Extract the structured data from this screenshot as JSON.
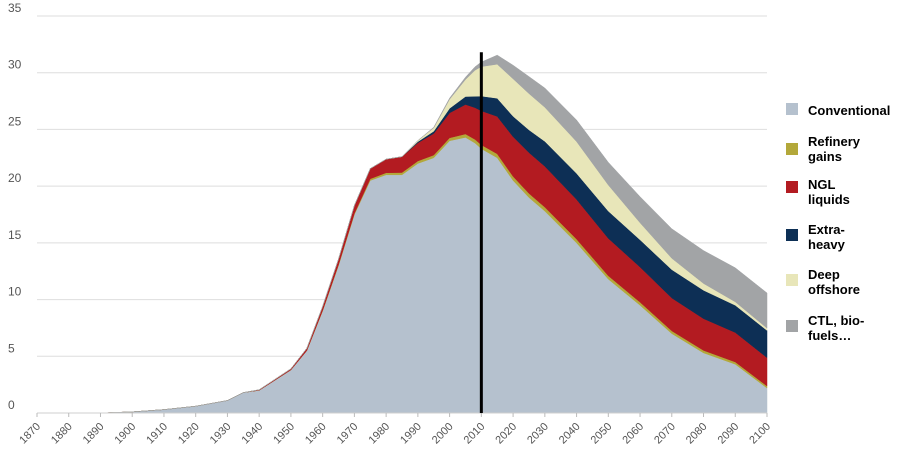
{
  "chart_data": {
    "type": "area",
    "stacked": true,
    "title": "",
    "xlabel": "",
    "ylabel": "",
    "xlim": [
      1870,
      2100
    ],
    "ylim": [
      0,
      35
    ],
    "yticks": [
      0,
      5,
      10,
      15,
      20,
      25,
      30,
      35
    ],
    "xticks": [
      "1870",
      "1880",
      "1890",
      "1900",
      "1910",
      "1920",
      "1930",
      "1940",
      "1950",
      "1960",
      "1970",
      "1980",
      "1990",
      "2000",
      "2010",
      "2020",
      "2030",
      "2040",
      "2050",
      "2060",
      "2070",
      "2080",
      "2090",
      "2100"
    ],
    "grid": "horizontal",
    "vertical_marker_x": 2010,
    "legend_position": "right",
    "x": [
      1870,
      1890,
      1900,
      1910,
      1920,
      1930,
      1935,
      1940,
      1950,
      1955,
      1960,
      1965,
      1970,
      1975,
      1980,
      1985,
      1990,
      1995,
      2000,
      2005,
      2008,
      2010,
      2015,
      2020,
      2025,
      2030,
      2040,
      2050,
      2060,
      2070,
      2080,
      2090,
      2100
    ],
    "series": [
      {
        "name": "Conventional",
        "color": "#b5c1ce",
        "values": [
          0,
          0,
          0.1,
          0.3,
          0.6,
          1.1,
          1.8,
          2.0,
          3.8,
          5.5,
          9,
          13,
          17.5,
          20.5,
          21,
          21,
          22,
          22.5,
          24,
          24.3,
          23.8,
          23.3,
          22.5,
          20.5,
          19,
          17.8,
          15,
          11.8,
          9.5,
          7,
          5.3,
          4.3,
          2.2
        ]
      },
      {
        "name": "Refinery gains",
        "color": "#b3a83a",
        "values": [
          0,
          0,
          0,
          0,
          0,
          0,
          0,
          0,
          0,
          0,
          0.05,
          0.08,
          0.1,
          0.15,
          0.18,
          0.2,
          0.22,
          0.24,
          0.26,
          0.3,
          0.32,
          0.34,
          0.35,
          0.36,
          0.36,
          0.35,
          0.33,
          0.3,
          0.27,
          0.24,
          0.22,
          0.2,
          0.18
        ]
      },
      {
        "name": "NGL liquids",
        "color": "#b31b21",
        "values": [
          0,
          0,
          0,
          0,
          0,
          0,
          0,
          0.05,
          0.1,
          0.2,
          0.35,
          0.5,
          0.7,
          0.9,
          1.2,
          1.4,
          1.6,
          1.9,
          2.2,
          2.6,
          2.8,
          3.0,
          3.3,
          3.5,
          3.6,
          3.6,
          3.5,
          3.3,
          3.1,
          2.9,
          2.8,
          2.6,
          2.5
        ]
      },
      {
        "name": "Extra-heavy",
        "color": "#0d2f55",
        "values": [
          0,
          0,
          0,
          0,
          0,
          0,
          0,
          0,
          0,
          0,
          0,
          0,
          0,
          0,
          0,
          0,
          0.1,
          0.2,
          0.4,
          0.7,
          1.0,
          1.3,
          1.6,
          1.8,
          2.0,
          2.2,
          2.3,
          2.4,
          2.4,
          2.5,
          2.5,
          2.4,
          2.4
        ]
      },
      {
        "name": "Deep offshore",
        "color": "#e8e6b9",
        "values": [
          0,
          0,
          0,
          0,
          0,
          0,
          0,
          0,
          0,
          0,
          0,
          0,
          0,
          0,
          0,
          0,
          0.1,
          0.3,
          0.8,
          1.5,
          2.3,
          2.6,
          3.0,
          3.3,
          3.2,
          3.0,
          2.8,
          2.3,
          1.5,
          1.0,
          0.6,
          0.3,
          0.2
        ]
      },
      {
        "name": "CTL, bio-fuels...",
        "color": "#a2a4a6",
        "values": [
          0,
          0,
          0,
          0,
          0,
          0,
          0,
          0,
          0,
          0,
          0,
          0,
          0,
          0,
          0,
          0,
          0,
          0.05,
          0.1,
          0.2,
          0.3,
          0.4,
          0.8,
          1.2,
          1.5,
          1.7,
          1.9,
          2.0,
          2.3,
          2.6,
          2.9,
          3.0,
          3.1
        ]
      }
    ]
  },
  "legend": {
    "items": [
      {
        "label": "Conventional",
        "color": "#b5c1ce"
      },
      {
        "label": "Refinery\ngains",
        "color": "#b3a83a"
      },
      {
        "label": "NGL\nliquids",
        "color": "#b31b21"
      },
      {
        "label": "Extra-\nheavy",
        "color": "#0d2f55"
      },
      {
        "label": "Deep\noffshore",
        "color": "#e8e6b9"
      },
      {
        "label": "CTL, bio-\nfuels…",
        "color": "#a2a4a6"
      }
    ]
  }
}
